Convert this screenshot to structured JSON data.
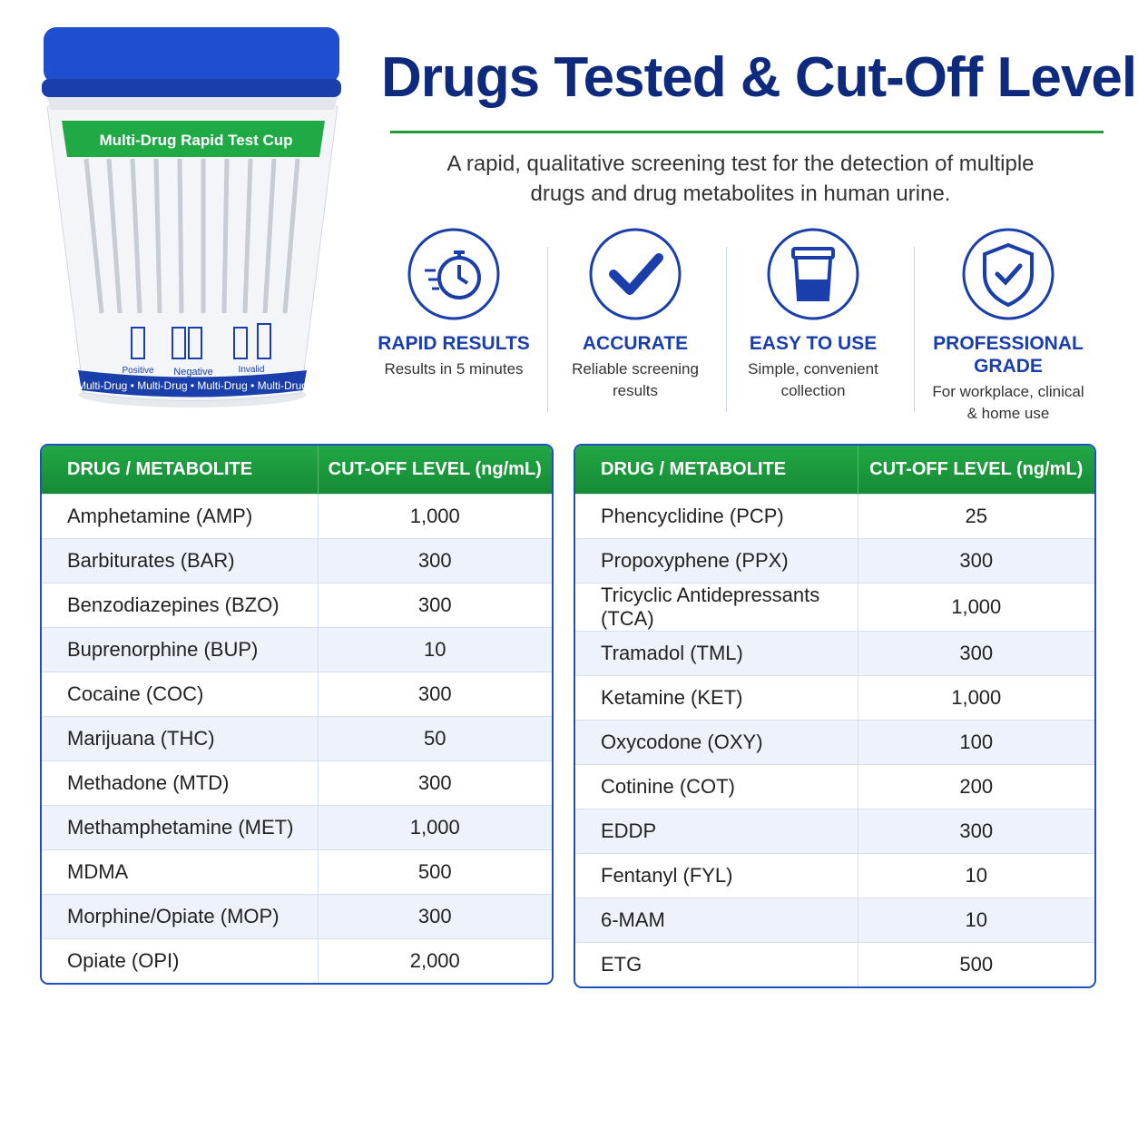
{
  "header": {
    "title": "Drugs Tested & Cut-Off Levels",
    "subtitle": [
      "A rapid, qualitative screening test for the detection of multiple",
      "drugs and drug metabolites in human urine."
    ]
  },
  "cup": {
    "label": "Multi-Drug Rapid Test Cup",
    "results": [
      "Positive",
      "Negative",
      "Invalid"
    ],
    "band": "Multi-Drug • Multi-Drug • Multi-Drug • Multi-Drug"
  },
  "features": [
    {
      "title": "RAPID RESULTS",
      "description": "Results in 5 minutes"
    },
    {
      "title": "ACCURATE",
      "description": "Reliable screening results"
    },
    {
      "title": "EASY TO USE",
      "description": "Simple, convenient collection"
    },
    {
      "title": "PROFESSIONAL GRADE",
      "description": "For workplace, clinical & home use"
    }
  ],
  "tables": [
    {
      "header": [
        "DRUG / METABOLITE",
        "CUT-OFF LEVEL (ng/mL)"
      ],
      "rows": [
        [
          "Amphetamine (AMP)",
          "1,000"
        ],
        [
          "Barbiturates (BAR)",
          "300"
        ],
        [
          "Benzodiazepines (BZO)",
          "300"
        ],
        [
          "Buprenorphine (BUP)",
          "10"
        ],
        [
          "Cocaine (COC)",
          "300"
        ],
        [
          "Marijuana (THC)",
          "50"
        ],
        [
          "Methadone (MTD)",
          "300"
        ],
        [
          "Methamphetamine (MET)",
          "1,000"
        ],
        [
          "MDMA",
          "500"
        ],
        [
          "Morphine/Opiate (MOP)",
          "300"
        ],
        [
          "Opiate (OPI)",
          "2,000"
        ]
      ]
    },
    {
      "header": [
        "DRUG / METABOLITE",
        "CUT-OFF LEVEL (ng/mL)"
      ],
      "rows": [
        [
          "Phencyclidine (PCP)",
          "25"
        ],
        [
          "Propoxyphene (PPX)",
          "300"
        ],
        [
          "Tricyclic Antidepressants (TCA)",
          "1,000"
        ],
        [
          "Tramadol (TML)",
          "300"
        ],
        [
          "Ketamine (KET)",
          "1,000"
        ],
        [
          "Oxycodone (OXY)",
          "100"
        ],
        [
          "Cotinine (COT)",
          "200"
        ],
        [
          "EDDP",
          "300"
        ],
        [
          "Fentanyl (FYL)",
          "10"
        ],
        [
          "6-MAM",
          "10"
        ],
        [
          "ETG",
          "500"
        ]
      ]
    }
  ]
}
